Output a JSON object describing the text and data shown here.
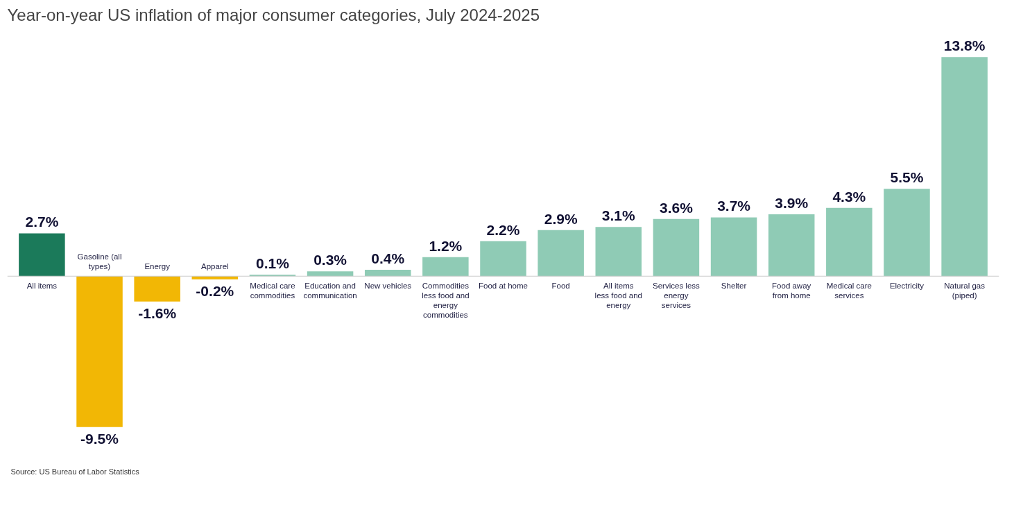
{
  "chart_data": {
    "type": "bar",
    "title": "Year-on-year US inflation of major consumer categories, July 2024-2025",
    "categories": [
      "All items",
      "Gasoline (all types)",
      "Energy",
      "Apparel",
      "Medical care commodities",
      "Education and communication",
      "New vehicles",
      "Commodities less food and energy commodities",
      "Food at home",
      "Food",
      "All items less food and energy",
      "Services less energy services",
      "Shelter",
      "Food away from home",
      "Medical care services",
      "Electricity",
      "Natural gas (piped)"
    ],
    "values": [
      2.7,
      -9.5,
      -1.6,
      -0.2,
      0.1,
      0.3,
      0.4,
      1.2,
      2.2,
      2.9,
      3.1,
      3.6,
      3.7,
      3.9,
      4.3,
      5.5,
      13.8
    ],
    "colors": [
      "#1b7a5a",
      "#f2b705",
      "#f2b705",
      "#f2b705",
      "#8fcbb5",
      "#8fcbb5",
      "#8fcbb5",
      "#8fcbb5",
      "#8fcbb5",
      "#8fcbb5",
      "#8fcbb5",
      "#8fcbb5",
      "#8fcbb5",
      "#8fcbb5",
      "#8fcbb5",
      "#8fcbb5",
      "#8fcbb5"
    ],
    "value_labels": [
      "2.7%",
      "-9.5%",
      "-1.6%",
      "-0.2%",
      "0.1%",
      "0.3%",
      "0.4%",
      "1.2%",
      "2.2%",
      "2.9%",
      "3.1%",
      "3.6%",
      "3.7%",
      "3.9%",
      "4.3%",
      "5.5%",
      "13.8%"
    ],
    "annotations": [
      "Source: US Bureau of Labor Statistics"
    ]
  }
}
